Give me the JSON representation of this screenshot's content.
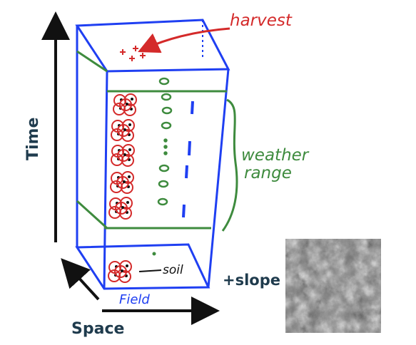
{
  "labels": {
    "time": "Time",
    "space": "Space",
    "harvest": "harvest",
    "weather_line1": "weather",
    "weather_line2": "range",
    "soil": "soil",
    "field": "Field",
    "slope": "+slope"
  },
  "colors": {
    "box": "#1f3ff2",
    "weather": "#3e8b3e",
    "harvest": "#d42a2a",
    "plant": "#d42a2a",
    "axis_text": "#1f3b4d",
    "axis_arrow": "#111111",
    "dashes": "#1f3ff2"
  },
  "image": {
    "name": "slope-terrain-photo",
    "kind": "grayscale aerial terrain"
  }
}
